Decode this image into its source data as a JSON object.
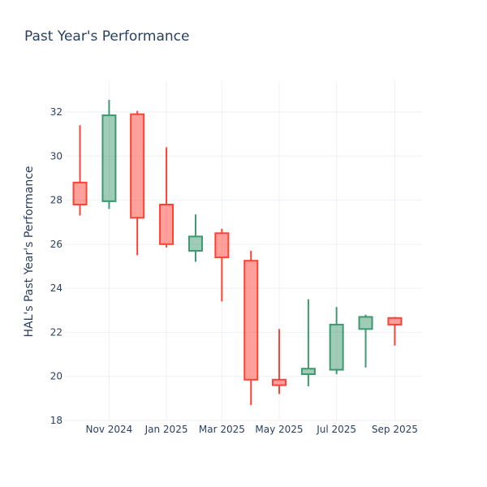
{
  "chart_data": {
    "type": "candlestick",
    "title": "Past Year's Performance",
    "xlabel": "",
    "ylabel": "HAL's Past Year's Performance",
    "ylim": [
      18,
      33.4
    ],
    "yticks": [
      18,
      20,
      22,
      24,
      26,
      28,
      30,
      32
    ],
    "xlim": [
      "2024-09-15",
      "2025-09-30"
    ],
    "xticks": [
      {
        "date": "2024-11-01",
        "label": "Nov 2024"
      },
      {
        "date": "2025-01-01",
        "label": "Jan 2025"
      },
      {
        "date": "2025-03-01",
        "label": "Mar 2025"
      },
      {
        "date": "2025-05-01",
        "label": "May 2025"
      },
      {
        "date": "2025-07-01",
        "label": "Jul 2025"
      },
      {
        "date": "2025-09-01",
        "label": "Sep 2025"
      }
    ],
    "grid": true,
    "increasing_color": "#3d9970",
    "decreasing_color": "#ff4136",
    "candles": [
      {
        "date": "2024-10-01",
        "open": 28.8,
        "high": 31.4,
        "low": 27.3,
        "close": 27.8
      },
      {
        "date": "2024-11-01",
        "open": 27.95,
        "high": 32.55,
        "low": 27.6,
        "close": 31.85
      },
      {
        "date": "2024-12-01",
        "open": 31.9,
        "high": 32.05,
        "low": 25.5,
        "close": 27.2
      },
      {
        "date": "2025-01-01",
        "open": 27.8,
        "high": 30.4,
        "low": 25.85,
        "close": 26.0
      },
      {
        "date": "2025-02-01",
        "open": 25.7,
        "high": 27.35,
        "low": 25.2,
        "close": 26.35
      },
      {
        "date": "2025-03-01",
        "open": 26.5,
        "high": 26.7,
        "low": 23.4,
        "close": 25.4
      },
      {
        "date": "2025-04-01",
        "open": 25.25,
        "high": 25.7,
        "low": 18.7,
        "close": 19.85
      },
      {
        "date": "2025-05-01",
        "open": 19.85,
        "high": 22.15,
        "low": 19.2,
        "close": 19.6
      },
      {
        "date": "2025-06-01",
        "open": 20.1,
        "high": 23.5,
        "low": 19.55,
        "close": 20.35
      },
      {
        "date": "2025-07-01",
        "open": 20.3,
        "high": 23.15,
        "low": 20.1,
        "close": 22.35
      },
      {
        "date": "2025-08-01",
        "open": 22.15,
        "high": 22.8,
        "low": 20.4,
        "close": 22.7
      },
      {
        "date": "2025-09-01",
        "open": 22.65,
        "high": 22.7,
        "low": 21.4,
        "close": 22.35
      }
    ]
  }
}
